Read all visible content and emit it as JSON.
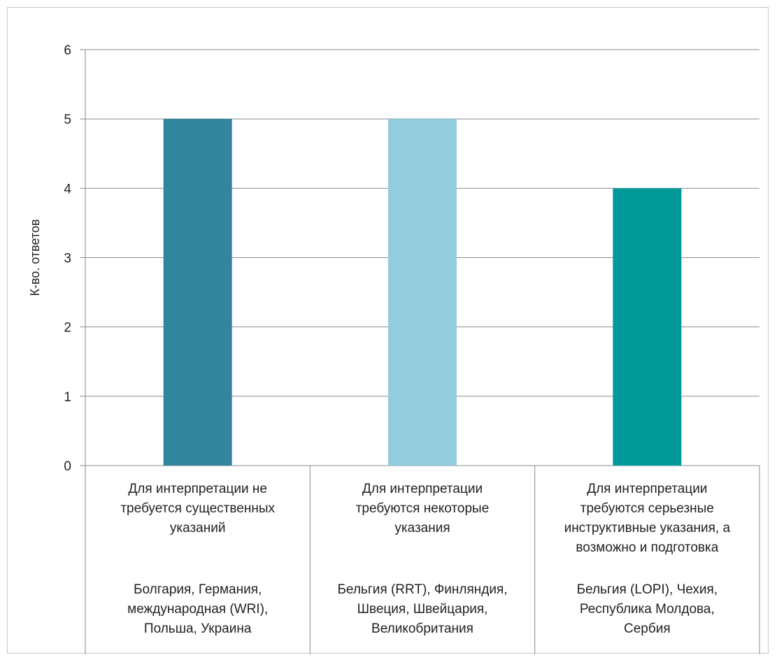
{
  "chart_data": {
    "type": "bar",
    "title": "",
    "xlabel": "",
    "ylabel": "К-во. ответов",
    "ylim": [
      0,
      6
    ],
    "yticks": [
      0,
      1,
      2,
      3,
      4,
      5,
      6
    ],
    "grid": true,
    "legend": "none",
    "categories": [
      {
        "label_lines": [
          "Для интерпретации не",
          "требуется существенных",
          "указаний"
        ],
        "countries_lines": [
          "Болгария, Германия,",
          "международная (WRI),",
          "Польша, Украина"
        ]
      },
      {
        "label_lines": [
          "Для интерпретации",
          "требуются некоторые",
          "указания"
        ],
        "countries_lines": [
          "Бельгия (RRT), Финляндия,",
          "Швеция, Швейцария,",
          "Великобритания"
        ]
      },
      {
        "label_lines": [
          "Для интерпретации",
          "требуются серьезные",
          "инструктивные указания, а",
          "возможно и подготовка"
        ],
        "countries_lines": [
          "Бельгия (LOPI), Чехия,",
          "Республика Молдова,",
          "Сербия"
        ]
      }
    ],
    "values": [
      5,
      5,
      4
    ],
    "colors": [
      "#31859c",
      "#93cddd",
      "#009999"
    ]
  }
}
